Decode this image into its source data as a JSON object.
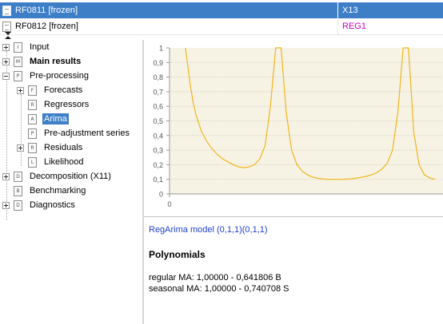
{
  "list": [
    {
      "name": "RF0811 [frozen]",
      "method": "X13",
      "selected": true
    },
    {
      "name": "RF0812 [frozen]",
      "method": "REG1",
      "selected": false
    }
  ],
  "tree": [
    {
      "label": "Input",
      "icon": "I"
    },
    {
      "label": "Main results",
      "icon": "M"
    },
    {
      "label": "Pre-processing",
      "icon": "P"
    },
    {
      "label": "Forecasts",
      "icon": "F"
    },
    {
      "label": "Regressors",
      "icon": "R"
    },
    {
      "label": "Arima",
      "icon": "A"
    },
    {
      "label": "Pre-adjustment series",
      "icon": "P"
    },
    {
      "label": "Residuals",
      "icon": "R"
    },
    {
      "label": "Likelihood",
      "icon": "L"
    },
    {
      "label": "Decomposition (X11)",
      "icon": "D"
    },
    {
      "label": "Benchmarking",
      "icon": "B"
    },
    {
      "label": "Diagnostics",
      "icon": "D"
    }
  ],
  "chart_data": {
    "type": "line",
    "y_ticks": [
      "1",
      "0,9",
      "0,8",
      "0,7",
      "0,6",
      "0,5",
      "0,4",
      "0,3",
      "0,2",
      "0,1",
      "0"
    ],
    "x_ticks": [
      "0"
    ],
    "ylim": [
      0,
      1
    ],
    "grid": true,
    "series": [
      {
        "color": "#f2b418",
        "x": [
          0.06,
          0.07,
          0.08,
          0.09,
          0.1,
          0.12,
          0.14,
          0.16,
          0.18,
          0.2,
          0.22,
          0.24,
          0.26,
          0.28,
          0.3,
          0.32,
          0.34,
          0.36,
          0.38,
          0.4,
          0.42,
          0.44,
          0.46,
          0.48,
          0.5,
          0.52,
          0.54,
          0.56,
          0.58,
          0.6,
          0.62,
          0.64,
          0.66,
          0.68,
          0.7,
          0.72,
          0.74,
          0.76,
          0.78,
          0.8,
          0.82,
          0.84,
          0.86,
          0.88,
          0.9,
          0.92,
          0.94,
          0.96,
          0.98,
          1.0
        ],
        "y": [
          1.0,
          0.86,
          0.72,
          0.62,
          0.54,
          0.43,
          0.36,
          0.31,
          0.27,
          0.24,
          0.22,
          0.2,
          0.185,
          0.18,
          0.185,
          0.2,
          0.24,
          0.33,
          0.6,
          1.0,
          1.0,
          0.55,
          0.3,
          0.2,
          0.155,
          0.13,
          0.115,
          0.107,
          0.102,
          0.1,
          0.1,
          0.1,
          0.101,
          0.103,
          0.107,
          0.113,
          0.12,
          0.13,
          0.145,
          0.17,
          0.21,
          0.3,
          0.56,
          1.0,
          1.0,
          0.42,
          0.2,
          0.13,
          0.11,
          0.1
        ]
      }
    ]
  },
  "chart_x_range": [
    0,
    1.03
  ],
  "model": {
    "title": "RegArima model (0,1,1)(0,1,1)",
    "section": "Polynomials",
    "regular": "regular MA: 1,00000 - 0,641806 B",
    "seasonal": "seasonal MA: 1,00000 - 0,740708 S"
  }
}
